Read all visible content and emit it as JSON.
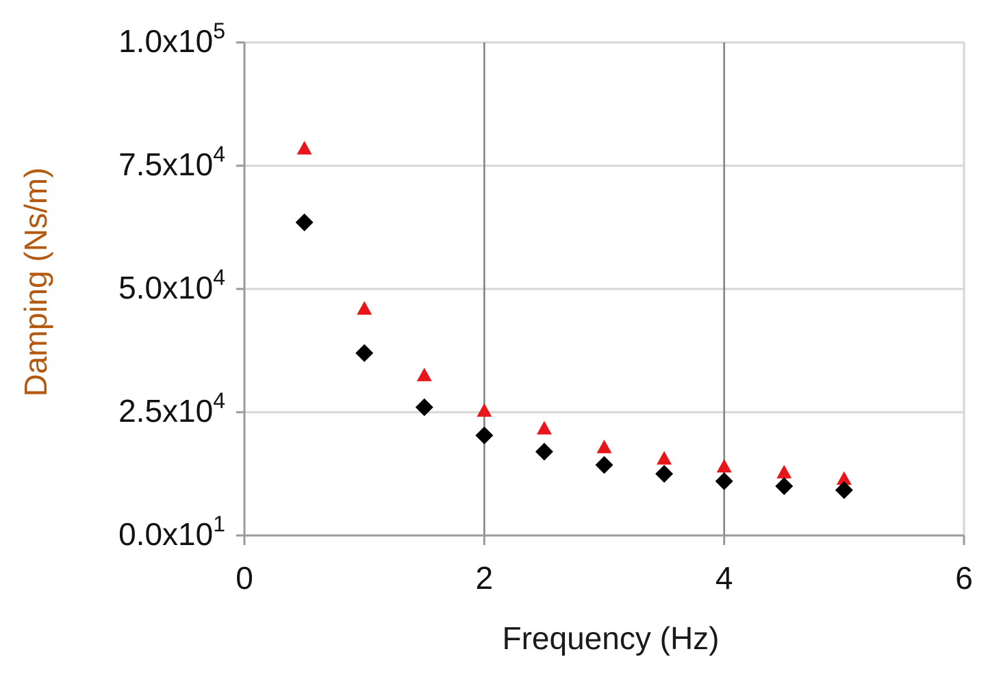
{
  "chart_data": {
    "type": "scatter",
    "title": "",
    "xlabel": "Frequency (Hz)",
    "ylabel": "Damping (Ns/m)",
    "xlim": [
      0,
      6
    ],
    "ylim": [
      0,
      100000
    ],
    "grid": true,
    "x_ticks": [
      "0",
      "2",
      "4",
      "6"
    ],
    "y_ticks": [
      {
        "value": 0,
        "mantissa": "0.0x10",
        "exponent": "1"
      },
      {
        "value": 25000,
        "mantissa": "2.5x10",
        "exponent": "4"
      },
      {
        "value": 50000,
        "mantissa": "5.0x10",
        "exponent": "4"
      },
      {
        "value": 75000,
        "mantissa": "7.5x10",
        "exponent": "4"
      },
      {
        "value": 100000,
        "mantissa": "1.0x10",
        "exponent": "5"
      }
    ],
    "series": [
      {
        "marker": "triangle",
        "color": "#e8161b",
        "x": [
          0.5,
          1.0,
          1.5,
          2.0,
          2.5,
          3.0,
          3.5,
          4.0,
          4.5,
          5.0
        ],
        "y": [
          78500,
          46000,
          32500,
          25300,
          21700,
          17900,
          15600,
          14000,
          12800,
          11500
        ]
      },
      {
        "marker": "diamond",
        "color": "#000000",
        "x": [
          0.5,
          1.0,
          1.5,
          2.0,
          2.5,
          3.0,
          3.5,
          4.0,
          4.5,
          5.0
        ],
        "y": [
          63500,
          37000,
          26000,
          20300,
          17000,
          14300,
          12500,
          11000,
          10000,
          9200
        ]
      }
    ]
  }
}
